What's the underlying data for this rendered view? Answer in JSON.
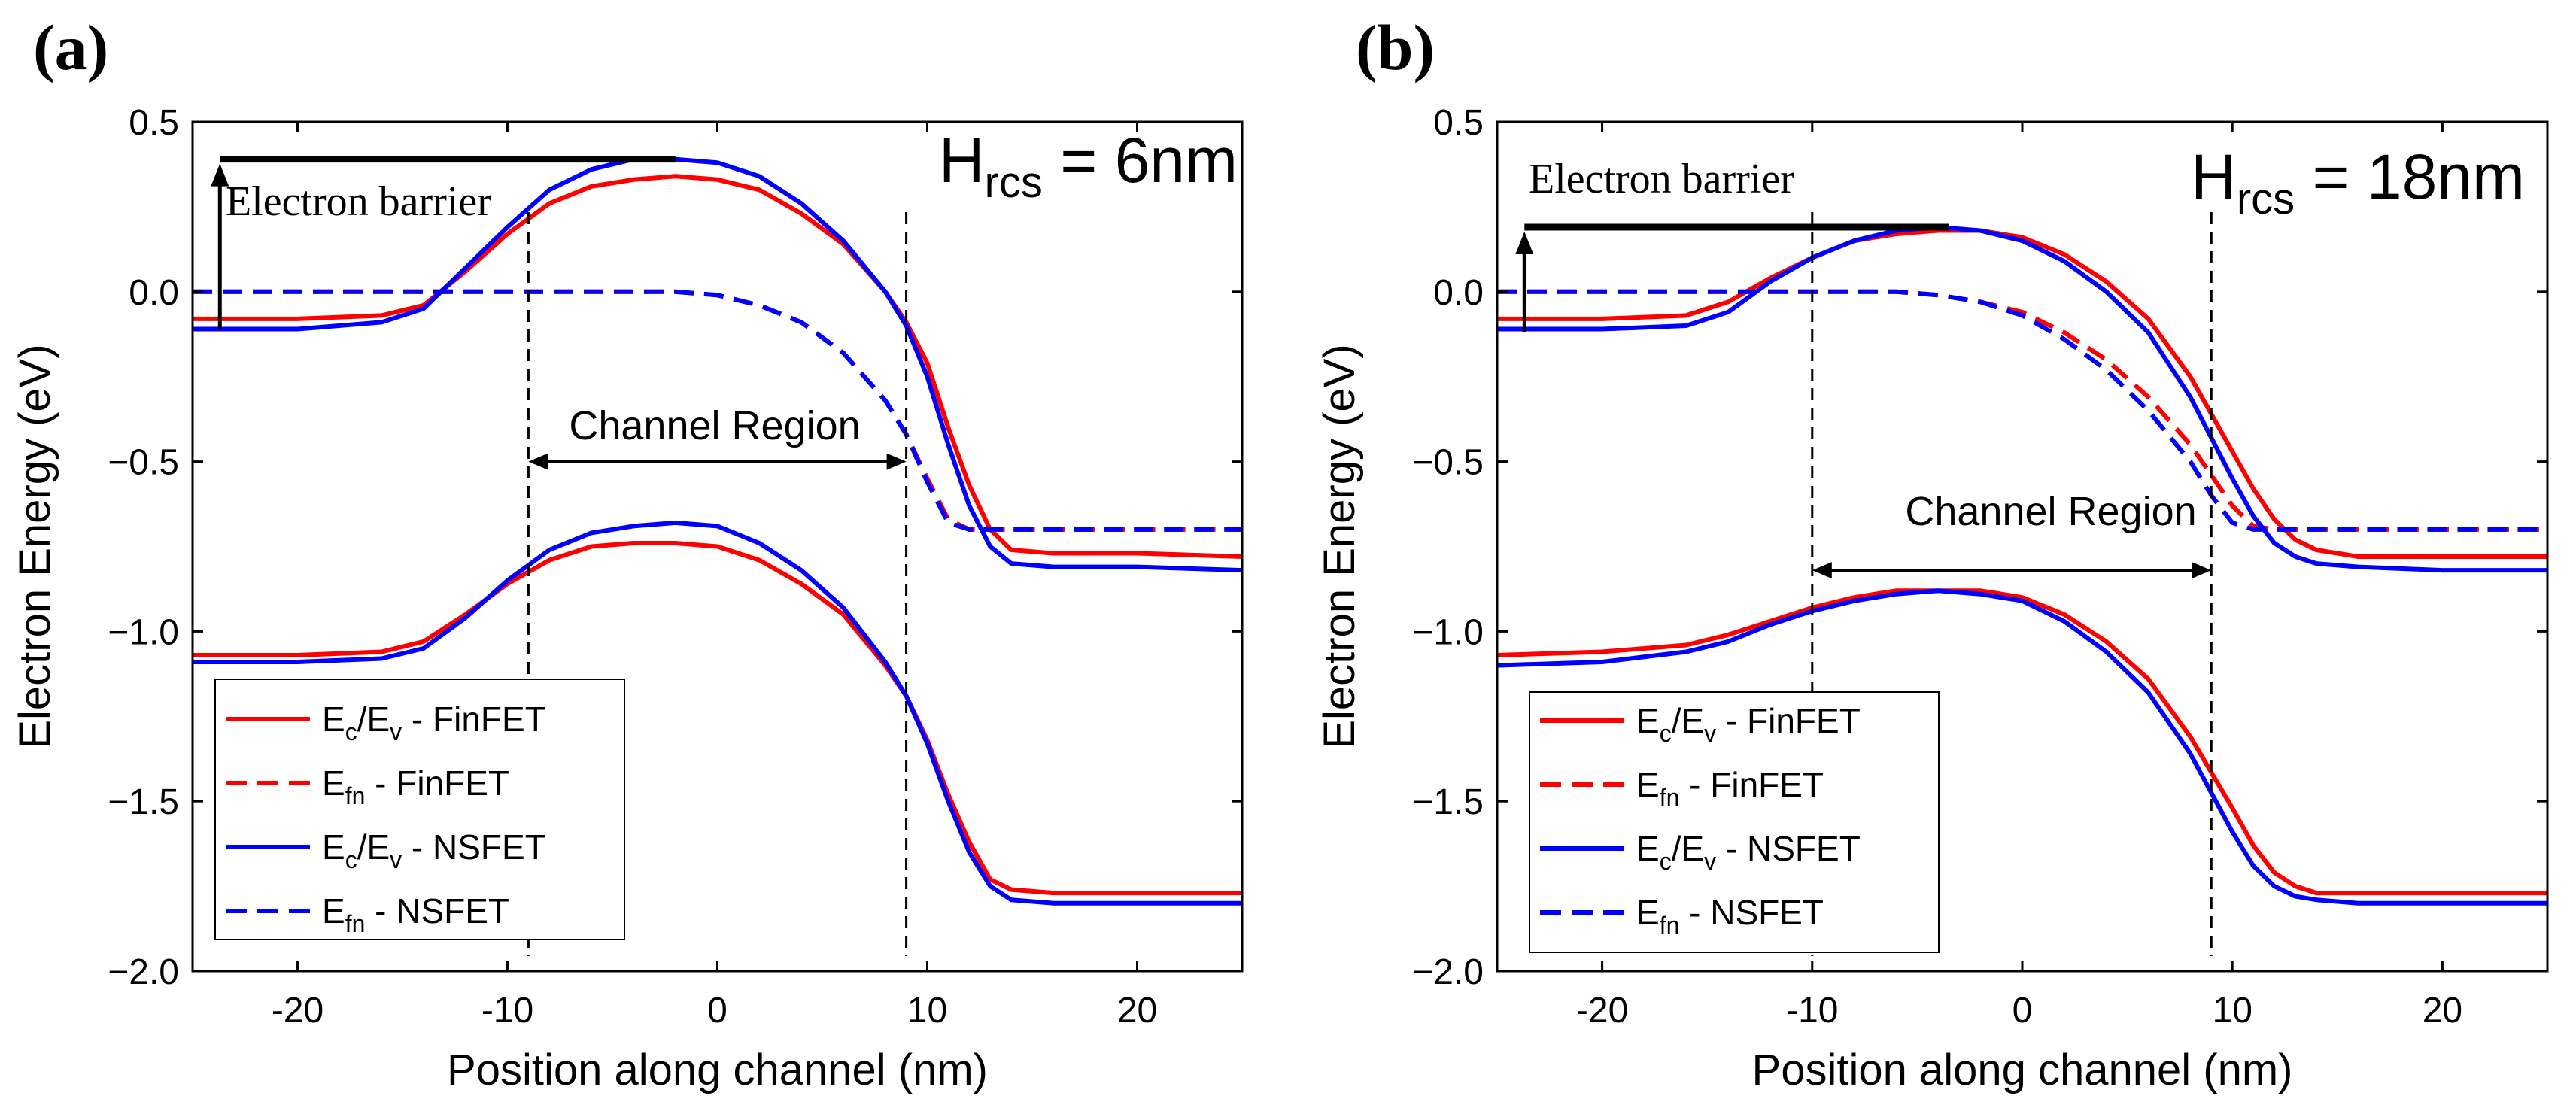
{
  "chart_data": [
    {
      "panel_label": "(a)",
      "type": "line",
      "title_annotation": {
        "main": "H",
        "sub": "rcs",
        "rest": " = 6nm"
      },
      "xlabel": "Position along channel (nm)",
      "ylabel": "Electron Energy (eV)",
      "xlim": [
        -25,
        25
      ],
      "ylim": [
        -2.0,
        0.5
      ],
      "xticks": [
        -20,
        -10,
        0,
        10,
        20
      ],
      "xtick_labels": [
        "-20",
        "-10",
        "0",
        "10",
        "20"
      ],
      "yticks": [
        0.5,
        0.0,
        -0.5,
        -1.0,
        -1.5,
        -2.0
      ],
      "ytick_labels": [
        "0.5",
        "0.0",
        "−0.5",
        "−1.0",
        "−1.5",
        "−2.0"
      ],
      "electron_barrier": {
        "label": "Electron barrier",
        "x": -23.7,
        "from": -0.11,
        "to": 0.39,
        "line_x_end": -2.0
      },
      "channel_region": {
        "label": "Channel Region",
        "x_start": -9,
        "x_end": 9,
        "arrow_y": -0.5
      },
      "legend": [
        {
          "main": "E",
          "sub1": "c",
          "mid": "/E",
          "sub2": "v",
          "rest": " - FinFET",
          "color": "#ff0000",
          "dash": false
        },
        {
          "main": "E",
          "sub1": "fn",
          "mid": "",
          "sub2": "",
          "rest": " - FinFET",
          "color": "#ff0000",
          "dash": true
        },
        {
          "main": "E",
          "sub1": "c",
          "mid": "/E",
          "sub2": "v",
          "rest": " - NSFET",
          "color": "#0000ff",
          "dash": false
        },
        {
          "main": "E",
          "sub1": "fn",
          "mid": "",
          "sub2": "",
          "rest": " - NSFET",
          "color": "#0000ff",
          "dash": true
        }
      ],
      "series": [
        {
          "name": "Ec - FinFET",
          "color": "#ff0000",
          "dash": false,
          "x": [
            -25,
            -20,
            -16,
            -14,
            -12,
            -10,
            -8,
            -6,
            -4,
            -2,
            0,
            2,
            4,
            6,
            8,
            9,
            10,
            11,
            12,
            13,
            14,
            16,
            20,
            25
          ],
          "y": [
            -0.08,
            -0.08,
            -0.07,
            -0.04,
            0.06,
            0.17,
            0.26,
            0.31,
            0.33,
            0.34,
            0.33,
            0.3,
            0.23,
            0.14,
            0.0,
            -0.09,
            -0.21,
            -0.4,
            -0.57,
            -0.7,
            -0.76,
            -0.77,
            -0.77,
            -0.78
          ]
        },
        {
          "name": "Ev - FinFET",
          "color": "#ff0000",
          "dash": false,
          "x": [
            -25,
            -20,
            -16,
            -14,
            -12,
            -10,
            -8,
            -6,
            -4,
            -2,
            0,
            2,
            4,
            6,
            8,
            9,
            10,
            11,
            12,
            13,
            14,
            16,
            20,
            25
          ],
          "y": [
            -1.07,
            -1.07,
            -1.06,
            -1.03,
            -0.95,
            -0.86,
            -0.79,
            -0.75,
            -0.74,
            -0.74,
            -0.75,
            -0.79,
            -0.86,
            -0.95,
            -1.1,
            -1.19,
            -1.32,
            -1.48,
            -1.62,
            -1.73,
            -1.76,
            -1.77,
            -1.77,
            -1.77
          ]
        },
        {
          "name": "Efn - FinFET",
          "color": "#ff0000",
          "dash": true,
          "x": [
            -25,
            -15,
            -10,
            -6,
            -2,
            0,
            2,
            4,
            6,
            8,
            9,
            10,
            11,
            12,
            14,
            16,
            20,
            25
          ],
          "y": [
            0.0,
            0.0,
            0.0,
            0.0,
            0.0,
            -0.01,
            -0.04,
            -0.09,
            -0.18,
            -0.32,
            -0.42,
            -0.55,
            -0.67,
            -0.7,
            -0.7,
            -0.7,
            -0.7,
            -0.7
          ]
        },
        {
          "name": "Ec - NSFET",
          "color": "#0000ff",
          "dash": false,
          "x": [
            -25,
            -20,
            -16,
            -14,
            -12,
            -10,
            -8,
            -6,
            -4,
            -2,
            0,
            2,
            4,
            6,
            8,
            9,
            10,
            11,
            12,
            13,
            14,
            16,
            20,
            25
          ],
          "y": [
            -0.11,
            -0.11,
            -0.09,
            -0.05,
            0.07,
            0.19,
            0.3,
            0.36,
            0.39,
            0.39,
            0.38,
            0.34,
            0.26,
            0.15,
            0.0,
            -0.1,
            -0.25,
            -0.45,
            -0.63,
            -0.75,
            -0.8,
            -0.81,
            -0.81,
            -0.82
          ]
        },
        {
          "name": "Ev - NSFET",
          "color": "#0000ff",
          "dash": false,
          "x": [
            -25,
            -20,
            -16,
            -14,
            -12,
            -10,
            -8,
            -6,
            -4,
            -2,
            0,
            2,
            4,
            6,
            8,
            9,
            10,
            11,
            12,
            13,
            14,
            16,
            20,
            25
          ],
          "y": [
            -1.09,
            -1.09,
            -1.08,
            -1.05,
            -0.96,
            -0.85,
            -0.76,
            -0.71,
            -0.69,
            -0.68,
            -0.69,
            -0.74,
            -0.82,
            -0.93,
            -1.09,
            -1.19,
            -1.33,
            -1.5,
            -1.65,
            -1.75,
            -1.79,
            -1.8,
            -1.8,
            -1.8
          ]
        },
        {
          "name": "Efn - NSFET",
          "color": "#0000ff",
          "dash": true,
          "x": [
            -25,
            -15,
            -10,
            -6,
            -2,
            0,
            2,
            4,
            6,
            8,
            9,
            10,
            11,
            12,
            14,
            16,
            20,
            25
          ],
          "y": [
            0.0,
            0.0,
            0.0,
            0.0,
            0.0,
            -0.01,
            -0.04,
            -0.09,
            -0.18,
            -0.32,
            -0.42,
            -0.56,
            -0.68,
            -0.7,
            -0.7,
            -0.7,
            -0.7,
            -0.7
          ]
        }
      ]
    },
    {
      "panel_label": "(b)",
      "type": "line",
      "title_annotation": {
        "main": "H",
        "sub": "rcs",
        "rest": " = 18nm"
      },
      "xlabel": "Position along channel (nm)",
      "ylabel": "Electron Energy (eV)",
      "xlim": [
        -25,
        25
      ],
      "ylim": [
        -2.0,
        0.5
      ],
      "xticks": [
        -20,
        -10,
        0,
        10,
        20
      ],
      "xtick_labels": [
        "-20",
        "-10",
        "0",
        "10",
        "20"
      ],
      "yticks": [
        0.5,
        0.0,
        -0.5,
        -1.0,
        -1.5,
        -2.0
      ],
      "ytick_labels": [
        "0.5",
        "0.0",
        "−0.5",
        "−1.0",
        "−1.5",
        "−2.0"
      ],
      "electron_barrier": {
        "label": "Electron barrier",
        "x": -23.7,
        "from": -0.12,
        "to": 0.19,
        "line_x_end": -3.5
      },
      "channel_region": {
        "label": "Channel Region",
        "x_start": -10,
        "x_end": 9,
        "arrow_y": -0.82
      },
      "legend": [
        {
          "main": "E",
          "sub1": "c",
          "mid": "/E",
          "sub2": "v",
          "rest": " - FinFET",
          "color": "#ff0000",
          "dash": false
        },
        {
          "main": "E",
          "sub1": "fn",
          "mid": "",
          "sub2": "",
          "rest": " - FinFET",
          "color": "#ff0000",
          "dash": true
        },
        {
          "main": "E",
          "sub1": "c",
          "mid": "/E",
          "sub2": "v",
          "rest": " - NSFET",
          "color": "#0000ff",
          "dash": false
        },
        {
          "main": "E",
          "sub1": "fn",
          "mid": "",
          "sub2": "",
          "rest": " - NSFET",
          "color": "#0000ff",
          "dash": true
        }
      ],
      "series": [
        {
          "name": "Ec - FinFET",
          "color": "#ff0000",
          "dash": false,
          "x": [
            -25,
            -20,
            -16,
            -14,
            -12,
            -10,
            -8,
            -6,
            -4,
            -2,
            0,
            2,
            4,
            6,
            8,
            10,
            11,
            12,
            13,
            14,
            16,
            20,
            25
          ],
          "y": [
            -0.08,
            -0.08,
            -0.07,
            -0.03,
            0.04,
            0.1,
            0.15,
            0.17,
            0.18,
            0.18,
            0.16,
            0.11,
            0.03,
            -0.08,
            -0.25,
            -0.47,
            -0.58,
            -0.67,
            -0.73,
            -0.76,
            -0.78,
            -0.78,
            -0.78
          ]
        },
        {
          "name": "Ev - FinFET",
          "color": "#ff0000",
          "dash": false,
          "x": [
            -25,
            -20,
            -16,
            -14,
            -12,
            -10,
            -8,
            -6,
            -4,
            -2,
            0,
            2,
            4,
            6,
            8,
            10,
            11,
            12,
            13,
            14,
            16,
            20,
            25
          ],
          "y": [
            -1.07,
            -1.06,
            -1.04,
            -1.01,
            -0.97,
            -0.93,
            -0.9,
            -0.88,
            -0.88,
            -0.88,
            -0.9,
            -0.95,
            -1.03,
            -1.14,
            -1.31,
            -1.52,
            -1.63,
            -1.71,
            -1.75,
            -1.77,
            -1.77,
            -1.77,
            -1.77
          ]
        },
        {
          "name": "Efn - FinFET",
          "color": "#ff0000",
          "dash": true,
          "x": [
            -25,
            -12,
            -8,
            -6,
            -4,
            -2,
            0,
            2,
            4,
            6,
            8,
            9,
            10,
            11,
            12,
            14,
            16,
            20,
            25
          ],
          "y": [
            0.0,
            0.0,
            0.0,
            0.0,
            -0.01,
            -0.03,
            -0.06,
            -0.12,
            -0.2,
            -0.31,
            -0.45,
            -0.54,
            -0.63,
            -0.69,
            -0.7,
            -0.7,
            -0.7,
            -0.7,
            -0.7
          ]
        },
        {
          "name": "Ec - NSFET",
          "color": "#0000ff",
          "dash": false,
          "x": [
            -25,
            -20,
            -16,
            -14,
            -12,
            -10,
            -8,
            -6,
            -4,
            -2,
            0,
            2,
            4,
            6,
            8,
            10,
            11,
            12,
            13,
            14,
            16,
            20,
            25
          ],
          "y": [
            -0.11,
            -0.11,
            -0.1,
            -0.06,
            0.03,
            0.1,
            0.15,
            0.18,
            0.19,
            0.18,
            0.15,
            0.09,
            0.0,
            -0.12,
            -0.31,
            -0.55,
            -0.66,
            -0.74,
            -0.78,
            -0.8,
            -0.81,
            -0.82,
            -0.82
          ]
        },
        {
          "name": "Ev - NSFET",
          "color": "#0000ff",
          "dash": false,
          "x": [
            -25,
            -20,
            -16,
            -14,
            -12,
            -10,
            -8,
            -6,
            -4,
            -2,
            0,
            2,
            4,
            6,
            8,
            10,
            11,
            12,
            13,
            14,
            16,
            20,
            25
          ],
          "y": [
            -1.1,
            -1.09,
            -1.06,
            -1.03,
            -0.98,
            -0.94,
            -0.91,
            -0.89,
            -0.88,
            -0.89,
            -0.91,
            -0.97,
            -1.06,
            -1.18,
            -1.36,
            -1.59,
            -1.69,
            -1.75,
            -1.78,
            -1.79,
            -1.8,
            -1.8,
            -1.8
          ]
        },
        {
          "name": "Efn - NSFET",
          "color": "#0000ff",
          "dash": true,
          "x": [
            -25,
            -12,
            -8,
            -6,
            -4,
            -2,
            0,
            2,
            4,
            6,
            8,
            9,
            10,
            11,
            12,
            14,
            16,
            20,
            25
          ],
          "y": [
            0.0,
            0.0,
            0.0,
            0.0,
            -0.01,
            -0.03,
            -0.07,
            -0.14,
            -0.23,
            -0.35,
            -0.5,
            -0.6,
            -0.68,
            -0.7,
            -0.7,
            -0.7,
            -0.7,
            -0.7,
            -0.7
          ]
        }
      ]
    }
  ]
}
